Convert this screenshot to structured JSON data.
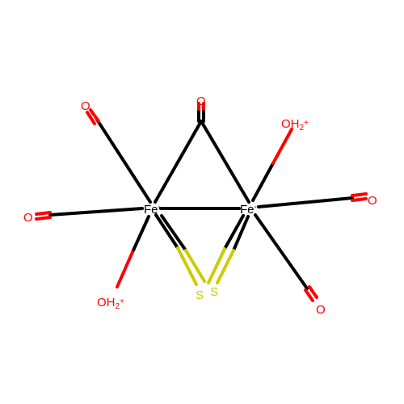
{
  "diagram": {
    "atoms": {
      "fe1": {
        "symbol": "Fe",
        "charge": "-"
      },
      "fe2": {
        "symbol": "Fe",
        "charge": "-"
      },
      "s1": {
        "symbol": "S"
      },
      "s2": {
        "symbol": "S"
      },
      "o_co1": {
        "symbol": "O"
      },
      "o_co2": {
        "symbol": "O"
      },
      "o_co3": {
        "symbol": "O"
      },
      "o_co4": {
        "symbol": "O"
      },
      "o_co5": {
        "symbol": "O"
      },
      "oh2_1": {
        "symbol": "OH",
        "subscript": "2",
        "charge": "+"
      },
      "oh2_2": {
        "symbol": "OH",
        "subscript": "2",
        "charge": "+"
      }
    },
    "colors": {
      "bond": "#000000",
      "oxygen": "#ff0000",
      "sulfur": "#cccc00",
      "iron": "#000000"
    }
  }
}
